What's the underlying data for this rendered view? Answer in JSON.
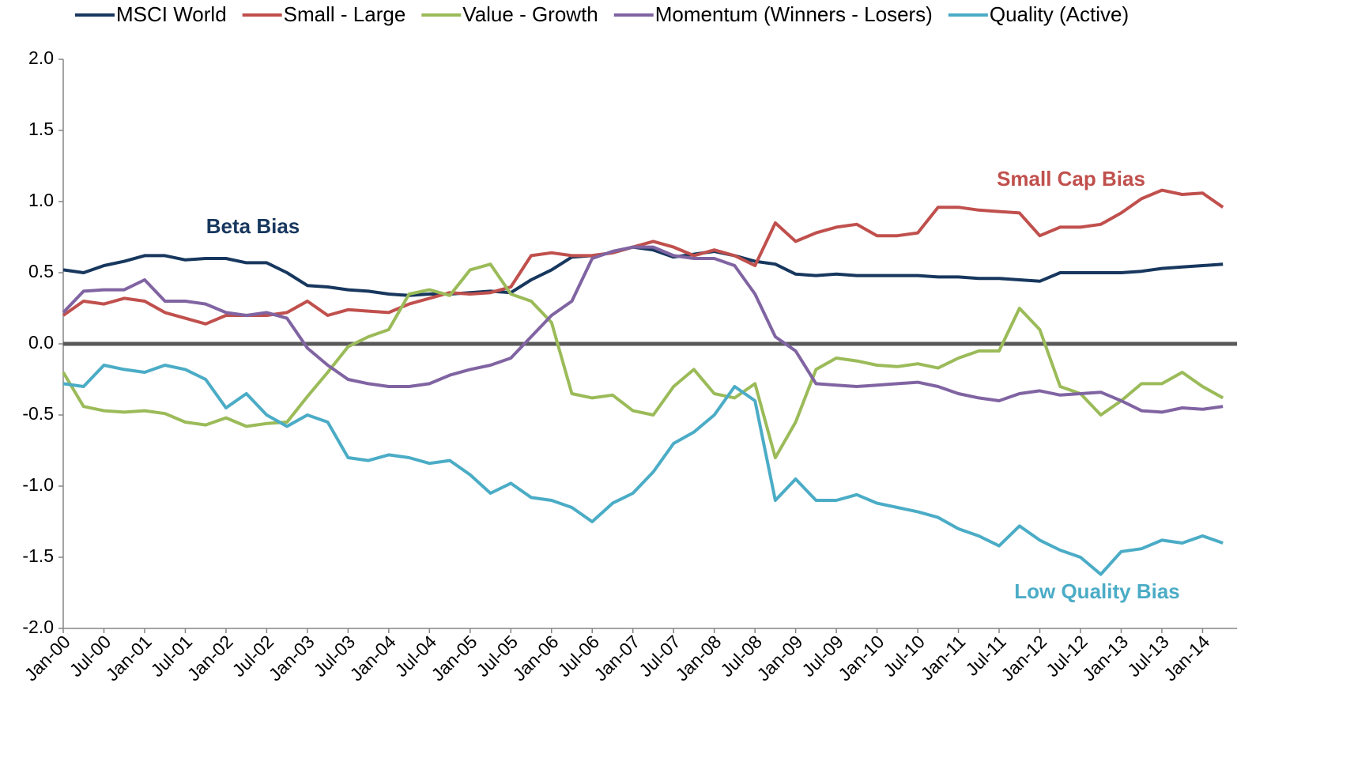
{
  "chart_data": {
    "type": "line",
    "categories": [
      "Jan-00",
      null,
      "Jul-00",
      null,
      "Jan-01",
      null,
      "Jul-01",
      null,
      "Jan-02",
      null,
      "Jul-02",
      null,
      "Jan-03",
      null,
      "Jul-03",
      null,
      "Jan-04",
      null,
      "Jul-04",
      null,
      "Jan-05",
      null,
      "Jul-05",
      null,
      "Jan-06",
      null,
      "Jul-06",
      null,
      "Jan-07",
      null,
      "Jul-07",
      null,
      "Jan-08",
      null,
      "Jul-08",
      null,
      "Jan-09",
      null,
      "Jul-09",
      null,
      "Jan-10",
      null,
      "Jul-10",
      null,
      "Jan-11",
      null,
      "Jul-11",
      null,
      "Jan-12",
      null,
      "Jul-12",
      null,
      "Jan-13",
      null,
      "Jul-13",
      null,
      "Jan-14",
      null
    ],
    "series": [
      {
        "name": "MSCI World",
        "color": "#17375e",
        "values": [
          0.52,
          0.5,
          0.55,
          0.58,
          0.62,
          0.62,
          0.59,
          0.6,
          0.6,
          0.57,
          0.57,
          0.5,
          0.41,
          0.4,
          0.38,
          0.37,
          0.35,
          0.34,
          0.35,
          0.35,
          0.36,
          0.37,
          0.36,
          0.45,
          0.52,
          0.61,
          0.62,
          0.64,
          0.68,
          0.66,
          0.61,
          0.63,
          0.65,
          0.62,
          0.58,
          0.56,
          0.49,
          0.48,
          0.49,
          0.48,
          0.48,
          0.48,
          0.48,
          0.47,
          0.47,
          0.46,
          0.46,
          0.45,
          0.44,
          0.5,
          0.5,
          0.5,
          0.5,
          0.51,
          0.53,
          0.54,
          0.55,
          0.56
        ]
      },
      {
        "name": "Small - Large",
        "color": "#c0504d",
        "values": [
          0.2,
          0.3,
          0.28,
          0.32,
          0.3,
          0.22,
          0.18,
          0.14,
          0.2,
          0.2,
          0.2,
          0.22,
          0.3,
          0.2,
          0.24,
          0.23,
          0.22,
          0.28,
          0.32,
          0.36,
          0.35,
          0.36,
          0.4,
          0.62,
          0.64,
          0.62,
          0.62,
          0.64,
          0.68,
          0.72,
          0.68,
          0.62,
          0.66,
          0.62,
          0.55,
          0.85,
          0.72,
          0.78,
          0.82,
          0.84,
          0.76,
          0.76,
          0.78,
          0.96,
          0.96,
          0.94,
          0.93,
          0.92,
          0.76,
          0.82,
          0.82,
          0.84,
          0.92,
          1.02,
          1.08,
          1.05,
          1.06,
          0.96
        ]
      },
      {
        "name": "Value - Growth",
        "color": "#9bbb59",
        "values": [
          -0.2,
          -0.44,
          -0.47,
          -0.48,
          -0.47,
          -0.49,
          -0.55,
          -0.57,
          -0.52,
          -0.58,
          -0.56,
          -0.55,
          -0.37,
          -0.2,
          -0.02,
          0.05,
          0.1,
          0.35,
          0.38,
          0.34,
          0.52,
          0.56,
          0.35,
          0.3,
          0.15,
          -0.35,
          -0.38,
          -0.36,
          -0.47,
          -0.5,
          -0.3,
          -0.18,
          -0.35,
          -0.38,
          -0.28,
          -0.8,
          -0.55,
          -0.18,
          -0.1,
          -0.12,
          -0.15,
          -0.16,
          -0.14,
          -0.17,
          -0.1,
          -0.05,
          -0.05,
          0.25,
          0.1,
          -0.3,
          -0.35,
          -0.5,
          -0.4,
          -0.28,
          -0.28,
          -0.2,
          -0.3,
          -0.38
        ]
      },
      {
        "name": "Momentum (Winners - Losers)",
        "color": "#8064a2",
        "values": [
          0.22,
          0.37,
          0.38,
          0.38,
          0.45,
          0.3,
          0.3,
          0.28,
          0.22,
          0.2,
          0.22,
          0.18,
          -0.03,
          -0.15,
          -0.25,
          -0.28,
          -0.3,
          -0.3,
          -0.28,
          -0.22,
          -0.18,
          -0.15,
          -0.1,
          0.05,
          0.2,
          0.3,
          0.6,
          0.65,
          0.68,
          0.68,
          0.62,
          0.6,
          0.6,
          0.55,
          0.35,
          0.05,
          -0.05,
          -0.28,
          -0.29,
          -0.3,
          -0.29,
          -0.28,
          -0.27,
          -0.3,
          -0.35,
          -0.38,
          -0.4,
          -0.35,
          -0.33,
          -0.36,
          -0.35,
          -0.34,
          -0.4,
          -0.47,
          -0.48,
          -0.45,
          -0.46,
          -0.44
        ]
      },
      {
        "name": "Quality (Active)",
        "color": "#4bacc6",
        "values": [
          -0.28,
          -0.3,
          -0.15,
          -0.18,
          -0.2,
          -0.15,
          -0.18,
          -0.25,
          -0.45,
          -0.35,
          -0.5,
          -0.58,
          -0.5,
          -0.55,
          -0.8,
          -0.82,
          -0.78,
          -0.8,
          -0.84,
          -0.82,
          -0.92,
          -1.05,
          -0.98,
          -1.08,
          -1.1,
          -1.15,
          -1.25,
          -1.12,
          -1.05,
          -0.9,
          -0.7,
          -0.62,
          -0.5,
          -0.3,
          -0.4,
          -1.1,
          -0.95,
          -1.1,
          -1.1,
          -1.06,
          -1.12,
          -1.15,
          -1.18,
          -1.22,
          -1.3,
          -1.35,
          -1.42,
          -1.28,
          -1.38,
          -1.45,
          -1.5,
          -1.62,
          -1.46,
          -1.44,
          -1.38,
          -1.4,
          -1.35,
          -1.4
        ]
      }
    ],
    "ylim": [
      -2,
      2
    ],
    "yticks": [
      {
        "value": -2,
        "label": "-2.0"
      },
      {
        "value": -1.5,
        "label": "-1.5"
      },
      {
        "value": -1,
        "label": "-1.0"
      },
      {
        "value": -0.5,
        "label": "-0.5"
      },
      {
        "value": 0,
        "label": "0.0"
      },
      {
        "value": 0.5,
        "label": "0.5"
      },
      {
        "value": 1,
        "label": "1.0"
      },
      {
        "value": 1.5,
        "label": "1.5"
      },
      {
        "value": 2,
        "label": "2.0"
      }
    ],
    "legend": "top",
    "annotations": [
      {
        "text": "Beta Bias",
        "color": "#17375e"
      },
      {
        "text": "Small Cap Bias",
        "color": "#c0504d"
      },
      {
        "text": "Low Quality Bias",
        "color": "#4bacc6"
      }
    ]
  }
}
